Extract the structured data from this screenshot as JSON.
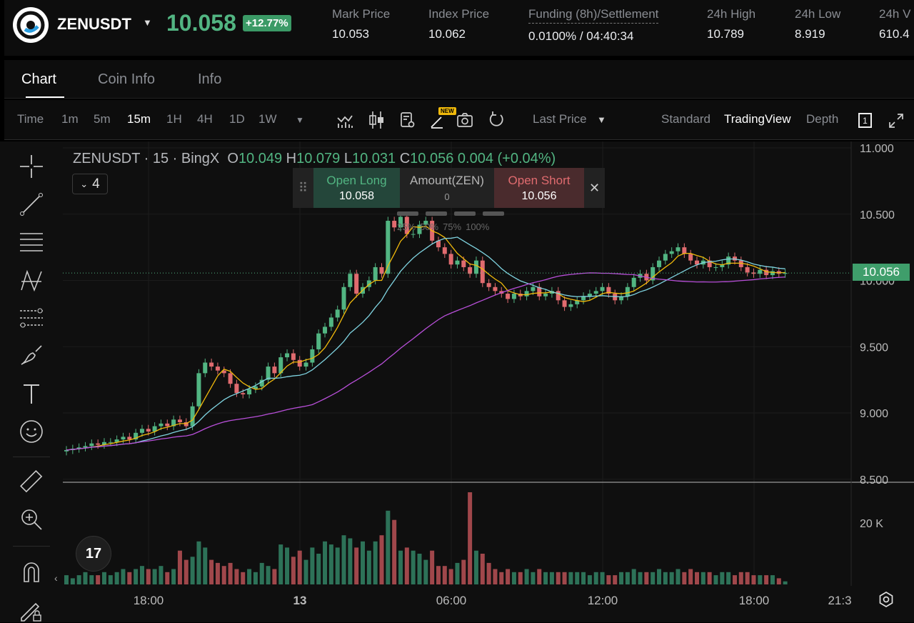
{
  "header": {
    "symbol": "ZENUSDT",
    "last_price": "10.058",
    "change_pct": "+12.77%",
    "stats": [
      {
        "label": "Mark Price",
        "value": "10.053"
      },
      {
        "label": "Index Price",
        "value": "10.062"
      },
      {
        "label": "Funding (8h)/Settlement",
        "value": "0.0100% / 04:40:34"
      },
      {
        "label": "24h High",
        "value": "10.789"
      },
      {
        "label": "24h Low",
        "value": "8.919"
      },
      {
        "label": "24h V",
        "value": "610.4"
      }
    ]
  },
  "tabs": [
    "Chart",
    "Coin Info",
    "Info"
  ],
  "toolbar": {
    "intervals": [
      "Time",
      "1m",
      "5m",
      "15m",
      "1H",
      "4H",
      "1D",
      "1W"
    ],
    "active_interval": "15m",
    "new_badge": "NEW",
    "price_type": "Last Price",
    "views": [
      "Standard",
      "TradingView",
      "Depth"
    ],
    "active_view": "TradingView",
    "layout_count": "1"
  },
  "legend": {
    "title": "ZENUSDT · 15 · BingX",
    "o_label": "O",
    "o": "10.049",
    "h_label": "H",
    "h": "10.079",
    "l_label": "L",
    "l": "10.031",
    "c_label": "C",
    "c": "10.056",
    "change": "0.004 (+0.04%)",
    "indicator_count": "4"
  },
  "trade_box": {
    "long_label": "Open Long",
    "long_price": "10.058",
    "amount_label": "Amount(ZEN)",
    "amount": "0",
    "short_label": "Open Short",
    "short_price": "10.056",
    "presets": [
      "25%",
      "50%",
      "75%",
      "100%"
    ]
  },
  "colors": {
    "up": "#52b582",
    "down": "#e06b6f",
    "ma_fast": "#f0b90b",
    "ma_mid": "#7fd3e0",
    "ma_slow": "#b84fd9",
    "background": "#0f0f0f"
  },
  "chart_data": {
    "type": "candlestick",
    "price_axis_ticks": [
      "11.000",
      "10.500",
      "10.000",
      "9.500",
      "9.000",
      "8.500"
    ],
    "volume_axis_ticks": [
      "20 K"
    ],
    "time_axis_ticks": [
      "18:00",
      "13",
      "06:00",
      "12:00",
      "18:00",
      "21:3"
    ],
    "ylim": [
      8.5,
      11.0
    ],
    "current_price": "10.056",
    "closes": [
      8.72,
      8.73,
      8.74,
      8.75,
      8.77,
      8.76,
      8.78,
      8.78,
      8.8,
      8.82,
      8.8,
      8.85,
      8.88,
      8.86,
      8.9,
      8.92,
      8.9,
      8.95,
      8.93,
      8.9,
      9.05,
      9.3,
      9.38,
      9.35,
      9.32,
      9.3,
      9.22,
      9.15,
      9.14,
      9.18,
      9.2,
      9.25,
      9.35,
      9.3,
      9.42,
      9.45,
      9.4,
      9.35,
      9.38,
      9.48,
      9.6,
      9.65,
      9.72,
      9.78,
      9.95,
      10.05,
      9.9,
      9.95,
      10.0,
      10.1,
      10.05,
      10.45,
      10.4,
      10.48,
      10.35,
      10.35,
      10.42,
      10.45,
      10.3,
      10.25,
      10.2,
      10.12,
      10.15,
      10.1,
      10.05,
      10.15,
      9.98,
      9.95,
      9.92,
      9.9,
      9.86,
      9.9,
      9.88,
      9.92,
      9.95,
      9.88,
      9.9,
      9.92,
      9.85,
      9.8,
      9.82,
      9.85,
      9.88,
      9.9,
      9.92,
      9.95,
      9.9,
      9.85,
      9.88,
      9.95,
      10.02,
      10.05,
      10.0,
      10.1,
      10.15,
      10.2,
      10.22,
      10.25,
      10.2,
      10.15,
      10.12,
      10.15,
      10.1,
      10.1,
      10.12,
      10.18,
      10.15,
      10.1,
      10.06,
      10.05,
      10.08,
      10.04,
      10.07,
      10.05,
      10.056
    ],
    "volumes_k": [
      3,
      2,
      3,
      4,
      3,
      3,
      4,
      3,
      4,
      5,
      4,
      5,
      6,
      5,
      5,
      6,
      4,
      5,
      11,
      8,
      9,
      14,
      12,
      8,
      7,
      6,
      7,
      5,
      4,
      5,
      4,
      7,
      6,
      5,
      13,
      12,
      9,
      11,
      8,
      12,
      10,
      14,
      13,
      12,
      16,
      15,
      12,
      14,
      11,
      14,
      16,
      24,
      21,
      11,
      12,
      11,
      10,
      8,
      11,
      6,
      6,
      5,
      7,
      8,
      30,
      11,
      10,
      7,
      5,
      4,
      5,
      4,
      4,
      5,
      4,
      5,
      4,
      4,
      4,
      4,
      4,
      4,
      4,
      3,
      4,
      4,
      3,
      3,
      4,
      4,
      5,
      4,
      4,
      4,
      5,
      4,
      4,
      5,
      4,
      5,
      4,
      4,
      4,
      3,
      4,
      4,
      3,
      4,
      4,
      3,
      3,
      3,
      3,
      2,
      1
    ]
  }
}
